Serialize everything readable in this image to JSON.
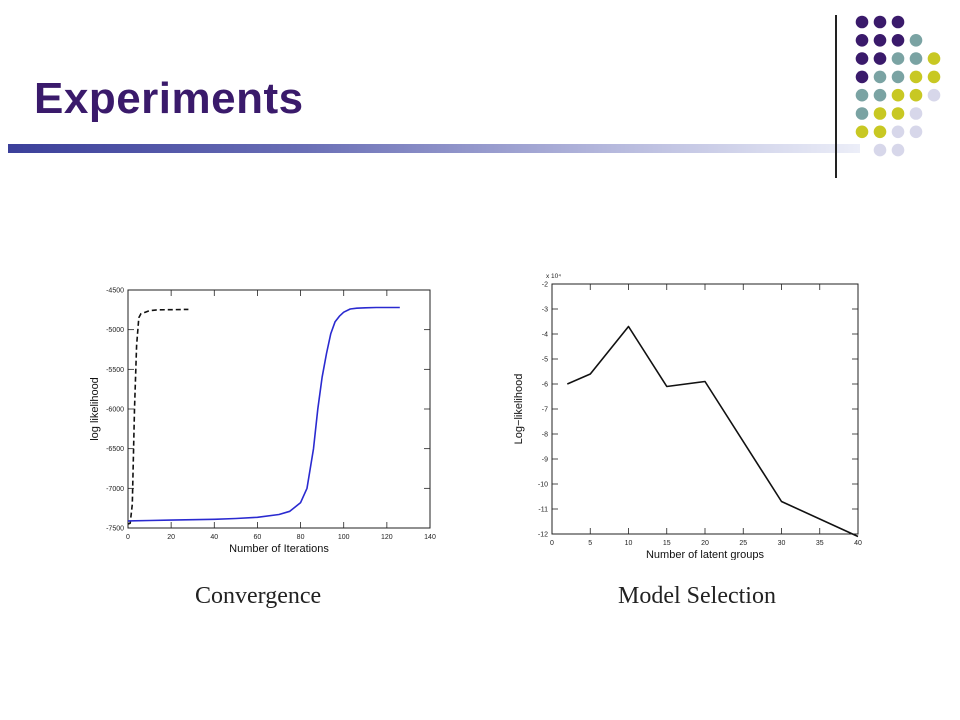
{
  "slide": {
    "title": "Experiments",
    "colors": {
      "title": "#3a1a6b",
      "purple": "#3a1a6b",
      "teal": "#7aa3a3",
      "olive": "#c8c823",
      "lavender": "#d7d7ea"
    }
  },
  "decor_dots": [
    [
      "purple",
      "purple",
      "purple"
    ],
    [
      "purple",
      "purple",
      "purple",
      "teal"
    ],
    [
      "purple",
      "purple",
      "teal",
      "teal",
      "olive"
    ],
    [
      "purple",
      "teal",
      "teal",
      "olive",
      "olive"
    ],
    [
      "teal",
      "teal",
      "olive",
      "olive",
      "lavender"
    ],
    [
      "teal",
      "olive",
      "olive",
      "lavender"
    ],
    [
      "olive",
      "olive",
      "lavender",
      "lavender"
    ],
    [
      "lavender",
      "lavender"
    ]
  ],
  "chart_data": [
    {
      "type": "line",
      "caption": "Convergence",
      "xlabel": "Number of Iterations",
      "ylabel": "log likelihood",
      "xlim": [
        0,
        140
      ],
      "ylim": [
        -7500,
        -4500
      ],
      "xticks": [
        0,
        20,
        40,
        60,
        80,
        100,
        120,
        140
      ],
      "yticks": [
        -7500,
        -7000,
        -6500,
        -6000,
        -5500,
        -5000,
        -4500
      ],
      "grid": false,
      "series": [
        {
          "style": "dashed",
          "color": "#111111",
          "x": [
            0,
            1,
            2,
            3,
            4,
            5,
            6,
            7,
            8,
            10,
            14,
            20,
            28
          ],
          "y": [
            -7450,
            -7440,
            -7200,
            -6000,
            -5200,
            -4850,
            -4800,
            -4790,
            -4780,
            -4760,
            -4750,
            -4748,
            -4745
          ]
        },
        {
          "style": "solid",
          "color": "#2a2ad0",
          "x": [
            0,
            10,
            20,
            30,
            40,
            50,
            60,
            70,
            75,
            80,
            83,
            86,
            88,
            90,
            92,
            94,
            96,
            98,
            100,
            103,
            106,
            110,
            115,
            120,
            126
          ],
          "y": [
            -7410,
            -7405,
            -7400,
            -7395,
            -7390,
            -7380,
            -7365,
            -7330,
            -7290,
            -7180,
            -7000,
            -6500,
            -6000,
            -5600,
            -5300,
            -5050,
            -4900,
            -4830,
            -4780,
            -4740,
            -4730,
            -4725,
            -4720,
            -4720,
            -4720
          ]
        }
      ]
    },
    {
      "type": "line",
      "caption": "Model Selection",
      "xlabel": "Number of latent groups",
      "ylabel": "Log−likelihood",
      "scale_note": "x 10⁴",
      "xlim": [
        0,
        40
      ],
      "ylim": [
        -12,
        -2
      ],
      "xticks": [
        0,
        5,
        10,
        15,
        20,
        25,
        30,
        35,
        40
      ],
      "yticks": [
        -12,
        -11,
        -10,
        -9,
        -8,
        -7,
        -6,
        -5,
        -4,
        -3,
        -2
      ],
      "grid": false,
      "series": [
        {
          "style": "solid",
          "color": "#111111",
          "x": [
            2,
            5,
            10,
            15,
            20,
            30,
            40
          ],
          "y": [
            -6.0,
            -5.6,
            -3.7,
            -6.1,
            -5.9,
            -10.7,
            -12.1
          ]
        }
      ]
    }
  ]
}
